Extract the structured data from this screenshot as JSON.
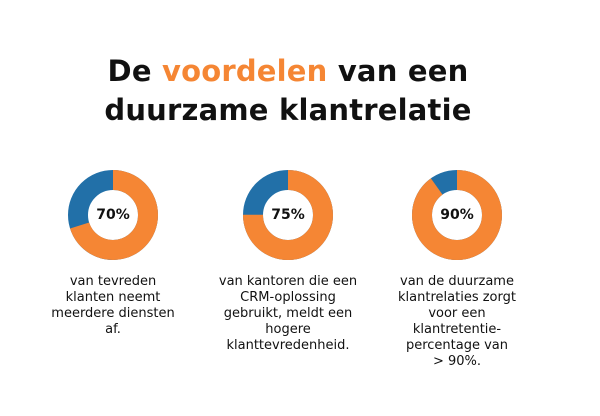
{
  "title": {
    "line1_pre": "De ",
    "line1_accent": "voordelen",
    "line1_post": " van een",
    "line2": "duurzame klantrelatie"
  },
  "colors": {
    "accent": "#F58634",
    "secondary": "#2270A8"
  },
  "chart_data": [
    {
      "type": "pie",
      "values": [
        70,
        30
      ],
      "label": "70%",
      "description": [
        "van tevreden",
        "klanten neemt",
        "meerdere diensten",
        "af."
      ]
    },
    {
      "type": "pie",
      "values": [
        75,
        25
      ],
      "label": "75%",
      "description": [
        "van kantoren die een",
        "CRM-oplossing",
        "gebruikt, meldt een",
        "hogere",
        "klanttevredenheid."
      ]
    },
    {
      "type": "pie",
      "values": [
        90,
        10
      ],
      "label": "90%",
      "description": [
        "van de duurzame",
        "klantrelaties zorgt",
        "voor een",
        "klantretentie-",
        "percentage van",
        "> 90%."
      ]
    }
  ]
}
